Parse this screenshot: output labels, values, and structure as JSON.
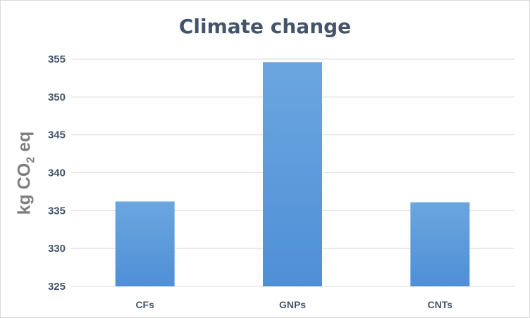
{
  "chart_data": {
    "type": "bar",
    "title": "Climate change",
    "ylabel": {
      "main": "kg CO",
      "sub": "2",
      "tail": " eq"
    },
    "xlabel": "",
    "categories": [
      "CFs",
      "GNPs",
      "CNTs"
    ],
    "values": [
      336.2,
      354.6,
      336.1
    ],
    "ylim": [
      325,
      355
    ],
    "yticks": [
      325,
      330,
      335,
      340,
      345,
      350,
      355
    ],
    "grid": true,
    "bar_color": "#4f8fd6",
    "bar_color_light": "#6ba6e0",
    "gridline_color": "#d9d9d9"
  }
}
